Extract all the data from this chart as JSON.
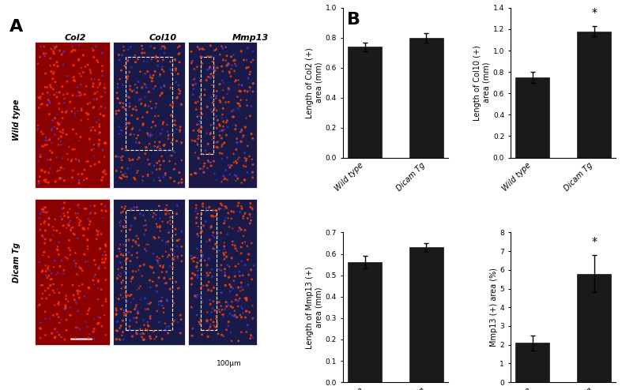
{
  "panel_B": {
    "col2": {
      "ylabel": "Length of Col2 (+)\narea (mm)",
      "ylim": [
        0.0,
        1.0
      ],
      "yticks": [
        0.0,
        0.2,
        0.4,
        0.6,
        0.8,
        1.0
      ],
      "categories": [
        "Wild type",
        "Dicam Tg"
      ],
      "values": [
        0.74,
        0.8
      ],
      "errors": [
        0.03,
        0.03
      ],
      "significant": false
    },
    "col10": {
      "ylabel": "Length of Col10 (+)\narea (mm)",
      "ylim": [
        0.0,
        1.4
      ],
      "yticks": [
        0.0,
        0.2,
        0.4,
        0.6,
        0.8,
        1.0,
        1.2,
        1.4
      ],
      "categories": [
        "Wild type",
        "Dicam Tg"
      ],
      "values": [
        0.75,
        1.18
      ],
      "errors": [
        0.05,
        0.05
      ],
      "significant": true
    },
    "mmp13_len": {
      "ylabel": "Length of Mmp13 (+)\narea (mm)",
      "ylim": [
        0.0,
        0.7
      ],
      "yticks": [
        0.0,
        0.1,
        0.2,
        0.3,
        0.4,
        0.5,
        0.6,
        0.7
      ],
      "categories": [
        "Wild type",
        "Dicam Tg"
      ],
      "values": [
        0.56,
        0.63
      ],
      "errors": [
        0.03,
        0.02
      ],
      "significant": false
    },
    "mmp13_pct": {
      "ylabel": "Mmp13 (+) area (%)",
      "ylim": [
        0.0,
        8.0
      ],
      "yticks": [
        0.0,
        1.0,
        2.0,
        3.0,
        4.0,
        5.0,
        6.0,
        7.0,
        8.0
      ],
      "categories": [
        "Wild type",
        "Dicam Tg"
      ],
      "values": [
        2.1,
        5.8
      ],
      "errors": [
        0.4,
        1.0
      ],
      "significant": true
    }
  },
  "bar_color": "#1a1a1a",
  "bar_width": 0.55,
  "background_color": "#ffffff",
  "label_A": "A",
  "label_B": "B",
  "col_headers": [
    "Col2",
    "Col10",
    "Mmp13"
  ],
  "row_labels": [
    "Wild type",
    "Dicam Tg"
  ],
  "scale_bar_text": "100μm"
}
